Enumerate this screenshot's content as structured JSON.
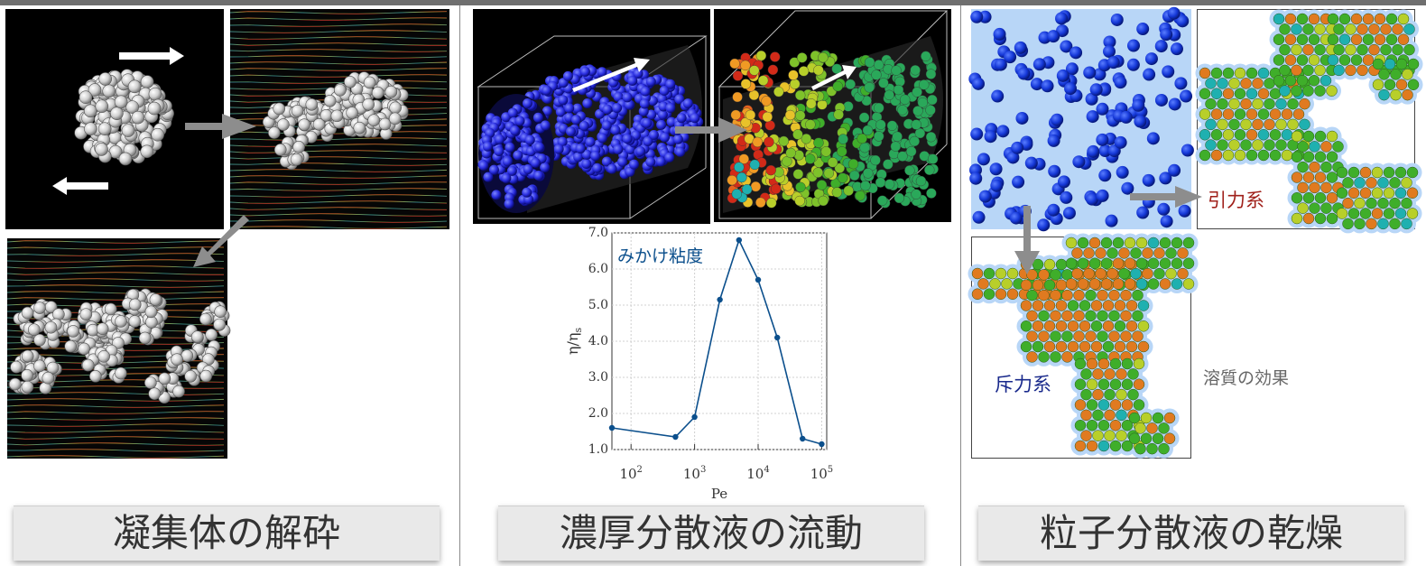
{
  "panels": [
    {
      "title": "凝集体の解砕"
    },
    {
      "title": "濃厚分散液の流動"
    },
    {
      "title": "粒子分散液の乾燥"
    }
  ],
  "drying": {
    "attractive_label": "引力系",
    "repulsive_label": "斥力系",
    "solute_note": "溶質の効果"
  },
  "chart_data": {
    "type": "line",
    "title": "",
    "annotation": "みかけ粘度",
    "xlabel": "Pe",
    "ylabel": "η/η",
    "ylabel_sub": "s",
    "x_scale": "log",
    "xlim": [
      50,
      120000
    ],
    "ylim": [
      1.0,
      7.0
    ],
    "grid": true,
    "yticks": [
      "7.0",
      "6.0",
      "5.0",
      "4.0",
      "3.0",
      "2.0",
      "1.0"
    ],
    "yticks_values": [
      7,
      6,
      5,
      4,
      3,
      2,
      1
    ],
    "xtick_base": [
      "10",
      "10",
      "10",
      "10"
    ],
    "xtick_exp": [
      "2",
      "3",
      "4",
      "5"
    ],
    "xtick_values": [
      100,
      1000,
      10000,
      100000
    ],
    "series": [
      {
        "x": [
          50,
          500,
          1000,
          2500,
          5000,
          10000,
          20000,
          50000,
          100000
        ],
        "y": [
          1.6,
          1.35,
          1.9,
          5.15,
          6.8,
          5.7,
          4.1,
          1.3,
          1.15
        ]
      }
    ],
    "color": "#0b4f8c"
  }
}
